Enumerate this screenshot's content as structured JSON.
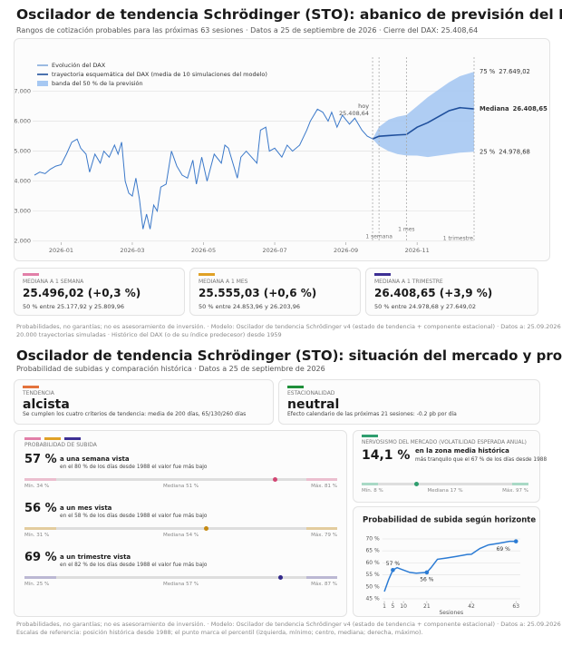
{
  "header1": {
    "title": "Oscilador de tendencia Schrödinger (STO): abanico de previsión del DAX",
    "subtitle": "Rangos de cotización probables para las próximas 63 sesiones  ·  Datos a 25 de septiembre de 2026  ·  Cierre del DAX: 25.408,64"
  },
  "forecast_cards": [
    {
      "color": "#e27fa8",
      "label": "MEDIANA A 1 SEMANA",
      "value": "25.496,02 (+0,3 %)",
      "range": "50 % entre 25.177,92 y 25.809,96"
    },
    {
      "color": "#e0a126",
      "label": "MEDIANA A 1 MES",
      "value": "25.555,03 (+0,6 %)",
      "range": "50 % entre 24.853,96 y 26.203,96"
    },
    {
      "color": "#3d2f94",
      "label": "MEDIANA A 1 TRIMESTRE",
      "value": "26.408,65 (+3,9 %)",
      "range": "50 % entre 24.978,68 y 27.649,02"
    }
  ],
  "footnote1": [
    "Probabilidades, no garantías; no es asesoramiento de inversión.  ·  Modelo: Oscilador de tendencia Schrödinger v4 (estado de tendencia + componente estacional)  ·  Datos a: 25.09.2026",
    "20.000 trayectorias simuladas  ·  Histórico del DAX (o de su índice predecesor) desde 1959"
  ],
  "header2": {
    "title": "Oscilador de tendencia Schrödinger (STO): situación del mercado y probabilidades",
    "subtitle": "Probabilidad de subidas y comparación histórica  ·  Datos a 25 de septiembre de 2026"
  },
  "status_cards": [
    {
      "color": "#e4733d",
      "label": "TENDENCIA",
      "value": "alcista",
      "note": "Se cumplen los cuatro criterios de tendencia: media de 200 días, 65/130/260 días"
    },
    {
      "color": "#1f8f3a",
      "label": "ESTACIONALIDAD",
      "value": "neutral",
      "note": "Efecto calendario de las próximas 21 sesiones: -0.2 pb por día"
    }
  ],
  "probability": {
    "label": "PROBABILIDAD DE SUBIDA",
    "colors": [
      "#e27fa8",
      "#e0a126",
      "#3d2f94"
    ],
    "rows": [
      {
        "value": "57 %",
        "horizon": "a una semana vista",
        "note": "en el 80 % de los días desde 1988 el valor fue más bajo",
        "percentile": 80,
        "min": "Mín. 34 %",
        "median": "Mediana 51 %",
        "max": "Máx. 81 %",
        "color": "#d24673",
        "band_color": "#ebbfcf"
      },
      {
        "value": "56 %",
        "horizon": "a un mes vista",
        "note": "en el 58 % de los días desde 1988 el valor fue más bajo",
        "percentile": 58,
        "min": "Mín. 31 %",
        "median": "Mediana 54 %",
        "max": "Máx. 79 %",
        "color": "#c58a12",
        "band_color": "#e3cc9e"
      },
      {
        "value": "69 %",
        "horizon": "a un trimestre vista",
        "note": "en el 82 % de los días desde 1988 el valor fue más bajo",
        "percentile": 82,
        "min": "Mín. 25 %",
        "median": "Mediana 57 %",
        "max": "Máx. 87 %",
        "color": "#32288a",
        "band_color": "#bcb8d3"
      }
    ]
  },
  "volatility": {
    "color": "#2f9e6f",
    "label": "NERVOSISMO DEL MERCADO (VOLATILIDAD ESPERADA ANUAL)",
    "value": "14,1 %",
    "zone": "en la zona media histórica",
    "note": "más tranquilo que el 67 % de los días desde 1988",
    "percentile": 33,
    "min": "Mín. 8 %",
    "median": "Mediana 17 %",
    "max": "Máx. 97 %",
    "band_color": "#a9d9c6"
  },
  "footnote2": [
    "Probabilidades, no garantías; no es asesoramiento de inversión.  ·  Modelo: Oscilador de tendencia Schrödinger v4 (estado de tendencia + componente estacional)  ·  Datos a: 25.09.2026",
    "Escalas de referencia: posición histórica desde 1988; el punto marca el percentil (izquierda, mínimo; centro, mediana; derecha, máximo)."
  ],
  "chart_data": [
    {
      "type": "fan",
      "xlim": [
        0.2,
        12.6
      ],
      "xticks": [
        {
          "value": 1,
          "label": "2026-01"
        },
        {
          "value": 3,
          "label": "2026-03"
        },
        {
          "value": 5,
          "label": "2026-05"
        },
        {
          "value": 7,
          "label": "2026-07"
        },
        {
          "value": 9,
          "label": "2026-09"
        },
        {
          "value": 11,
          "label": "2026-11"
        }
      ],
      "ylim": [
        21960,
        28620
      ],
      "yticks": [
        {
          "value": 22000,
          "label": "22.000"
        },
        {
          "value": 23000,
          "label": "23.000"
        },
        {
          "value": 24000,
          "label": "24.000"
        },
        {
          "value": 25000,
          "label": "25.000"
        },
        {
          "value": 26000,
          "label": "26.000"
        },
        {
          "value": 27000,
          "label": "27.000"
        }
      ],
      "grid": true,
      "series": [
        {
          "name": "Evolución del DAX",
          "color": "#3a78c9",
          "x": [
            0.25,
            0.4,
            0.55,
            0.7,
            0.85,
            1.0,
            1.15,
            1.3,
            1.45,
            1.55,
            1.7,
            1.8,
            1.95,
            2.1,
            2.2,
            2.35,
            2.5,
            2.6,
            2.7,
            2.8,
            2.9,
            3.0,
            3.1,
            3.2,
            3.3,
            3.4,
            3.5,
            3.6,
            3.7,
            3.8,
            3.95,
            4.1,
            4.25,
            4.4,
            4.55,
            4.7,
            4.8,
            4.95,
            5.1,
            5.3,
            5.5,
            5.6,
            5.7,
            5.85,
            5.95,
            6.05,
            6.2,
            6.35,
            6.5,
            6.6,
            6.75,
            6.85,
            7.0,
            7.2,
            7.35,
            7.5,
            7.7,
            7.9,
            8.0,
            8.2,
            8.35,
            8.5,
            8.6,
            8.75,
            8.9,
            9.1,
            9.25,
            9.45,
            9.6,
            9.75
          ],
          "values": [
            24200,
            24300,
            24250,
            24400,
            24500,
            24550,
            24900,
            25300,
            25400,
            25100,
            24900,
            24300,
            24900,
            24600,
            25000,
            24800,
            25200,
            24900,
            25300,
            24000,
            23600,
            23500,
            24100,
            23400,
            22400,
            22900,
            22400,
            23200,
            23000,
            23800,
            23900,
            25000,
            24500,
            24200,
            24100,
            24700,
            23900,
            24800,
            24000,
            24900,
            24600,
            25200,
            25100,
            24500,
            24100,
            24800,
            25000,
            24800,
            24600,
            25700,
            25800,
            25000,
            25100,
            24800,
            25200,
            25000,
            25200,
            25700,
            26000,
            26400,
            26300,
            26000,
            26300,
            25800,
            26200,
            25900,
            26100,
            25700,
            25500,
            25408.64
          ]
        },
        {
          "name": "trayectoria esquemática del DAX (media de 10 simulaciones del modelo)",
          "color": "#1f4f9c",
          "x": [
            9.75,
            9.93,
            10.2,
            10.45,
            10.7,
            11.0,
            11.3,
            11.6,
            11.9,
            12.2,
            12.6
          ],
          "values": [
            25408.64,
            25496.02,
            25520,
            25540,
            25555.03,
            25800,
            25950,
            26150,
            26350,
            26450,
            26408.65
          ]
        },
        {
          "name": "banda del 50 % de la previsión",
          "color": "#a6c8f2",
          "x": [
            9.75,
            9.93,
            10.2,
            10.45,
            10.7,
            11.0,
            11.3,
            11.6,
            11.9,
            12.2,
            12.6
          ],
          "lower": [
            25408.64,
            25177.92,
            25000,
            24900,
            24853.96,
            24850,
            24800,
            24850,
            24900,
            24950,
            24978.68
          ],
          "upper": [
            25408.64,
            25809.96,
            26050,
            26150,
            26203.96,
            26500,
            26800,
            27050,
            27300,
            27500,
            27649.02
          ]
        }
      ],
      "markers": [
        {
          "x": 9.75,
          "label": "hoy",
          "value": 25408.64,
          "value_label": "25.408,64"
        },
        {
          "x": 9.93,
          "label": "1 semana"
        },
        {
          "x": 10.7,
          "label": "1 mes"
        },
        {
          "x": 12.6,
          "label": "1 trimestre"
        }
      ],
      "end_labels": [
        {
          "name": "75 %",
          "value": 27649.02,
          "value_label": "27.649,02"
        },
        {
          "name": "Mediana",
          "value": 26408.65,
          "value_label": "26.408,65"
        },
        {
          "name": "25 %",
          "value": 24978.68,
          "value_label": "24.978,68"
        }
      ]
    },
    {
      "type": "line",
      "title": "Probabilidad de subida según horizonte",
      "color": "#2b7bd4",
      "x": [
        1,
        3,
        5,
        7,
        10,
        13,
        16,
        21,
        23,
        26,
        30,
        35,
        40,
        42,
        46,
        50,
        55,
        60,
        63
      ],
      "values": [
        48,
        53,
        57,
        58,
        57,
        56,
        55.7,
        56,
        58,
        61.5,
        62,
        62.7,
        63.5,
        63.6,
        66,
        67.5,
        68.2,
        69,
        69
      ],
      "value_labels": [
        null,
        null,
        "57 %",
        null,
        null,
        null,
        null,
        "56 %",
        null,
        null,
        null,
        null,
        null,
        null,
        null,
        null,
        null,
        null,
        "69 %"
      ],
      "xlim": [
        0,
        65
      ],
      "xticks": [
        1,
        5,
        10,
        21,
        42,
        63
      ],
      "xlabel": "Sesiones",
      "ylim": [
        44,
        72
      ],
      "yticks": [
        {
          "value": 45,
          "label": "45 %"
        },
        {
          "value": 50,
          "label": "50 %"
        },
        {
          "value": 55,
          "label": "55 %"
        },
        {
          "value": 60,
          "label": "60 %"
        },
        {
          "value": 65,
          "label": "65 %"
        },
        {
          "value": 70,
          "label": "70 %"
        }
      ],
      "grid": true
    }
  ]
}
